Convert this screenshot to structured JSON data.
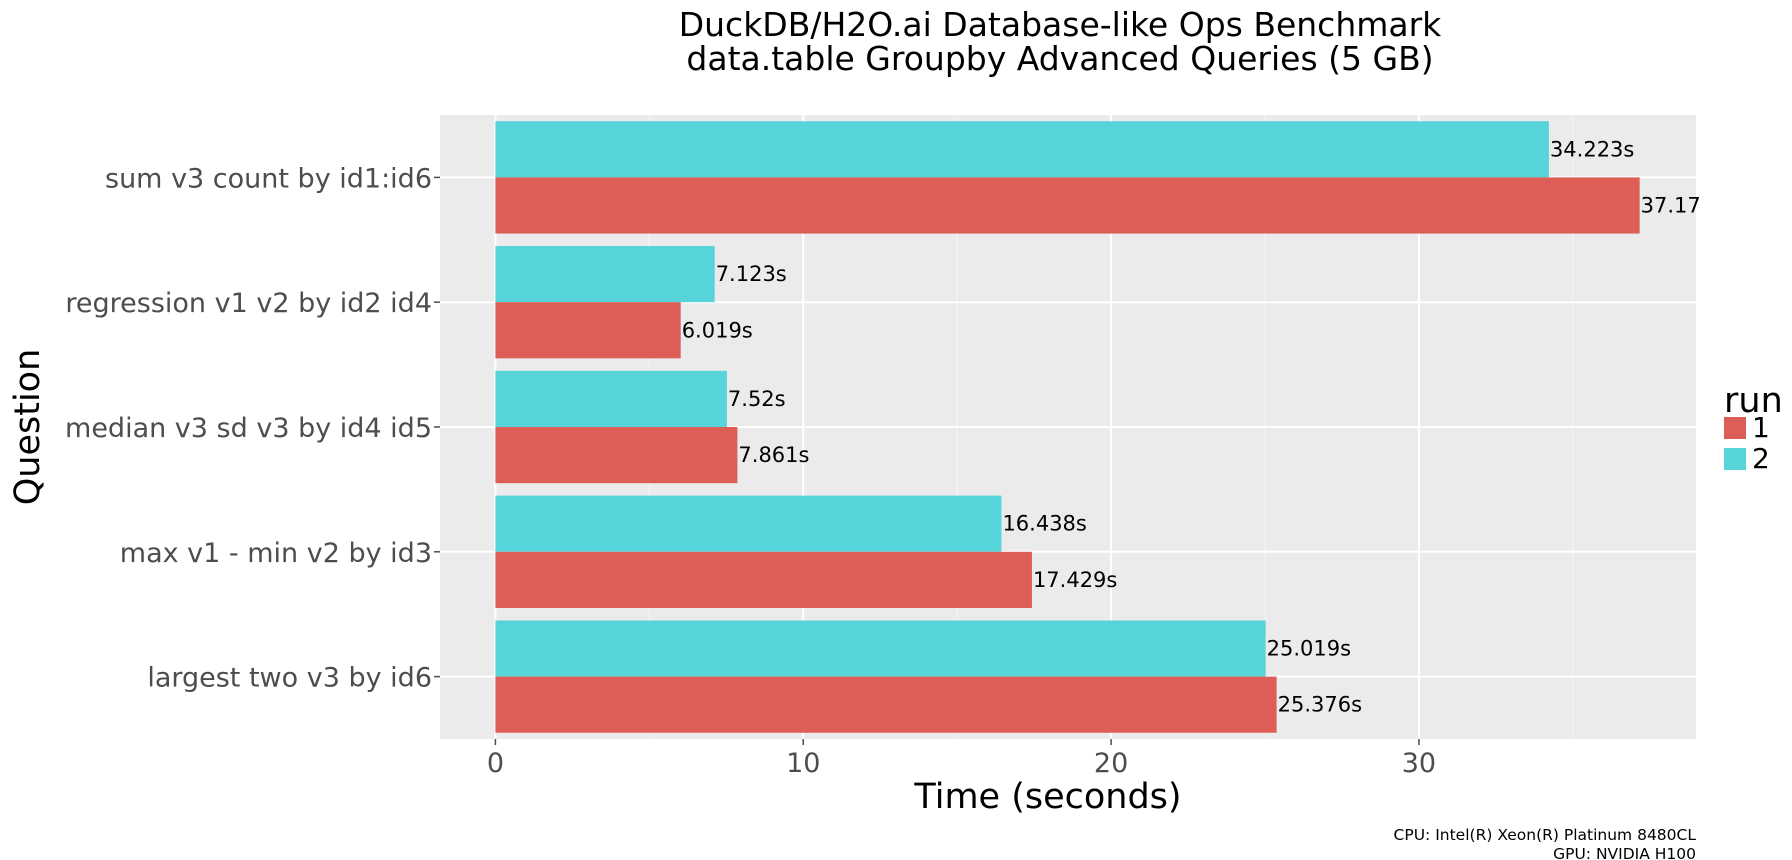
{
  "chart_data": {
    "type": "bar",
    "orientation": "horizontal",
    "title": "DuckDB/H2O.ai Database-like Ops Benchmark",
    "subtitle": "data.table Groupby Advanced Queries (5 GB)",
    "xlabel": "Time (seconds)",
    "ylabel": "Question",
    "categories": [
      "sum v3 count by id1:id6",
      "regression v1 v2 by id2 id4",
      "median v3 sd v3 by id4 id5",
      "max v1 - min v2 by id3",
      "largest two v3 by id6"
    ],
    "series": [
      {
        "name": "1",
        "color": "#dc5e57",
        "values": [
          37.17,
          6.019,
          7.861,
          17.429,
          25.376
        ],
        "labels": [
          "37.17",
          "6.019s",
          "7.861s",
          "17.429s",
          "25.376s"
        ]
      },
      {
        "name": "2",
        "color": "#57d3da",
        "values": [
          34.223,
          7.123,
          7.52,
          16.438,
          25.019
        ],
        "labels": [
          "34.223s",
          "7.123s",
          "7.52s",
          "16.438s",
          "25.019s"
        ]
      }
    ],
    "xlim": [
      -1.8,
      39.0
    ],
    "xticks": [
      0,
      10,
      20,
      30
    ],
    "grid": true,
    "panel_background": "#ebebeb",
    "legend": {
      "title": "run",
      "placement": "right"
    },
    "caption": [
      "CPU: Intel(R) Xeon(R) Platinum 8480CL",
      "GPU: NVIDIA H100"
    ]
  }
}
